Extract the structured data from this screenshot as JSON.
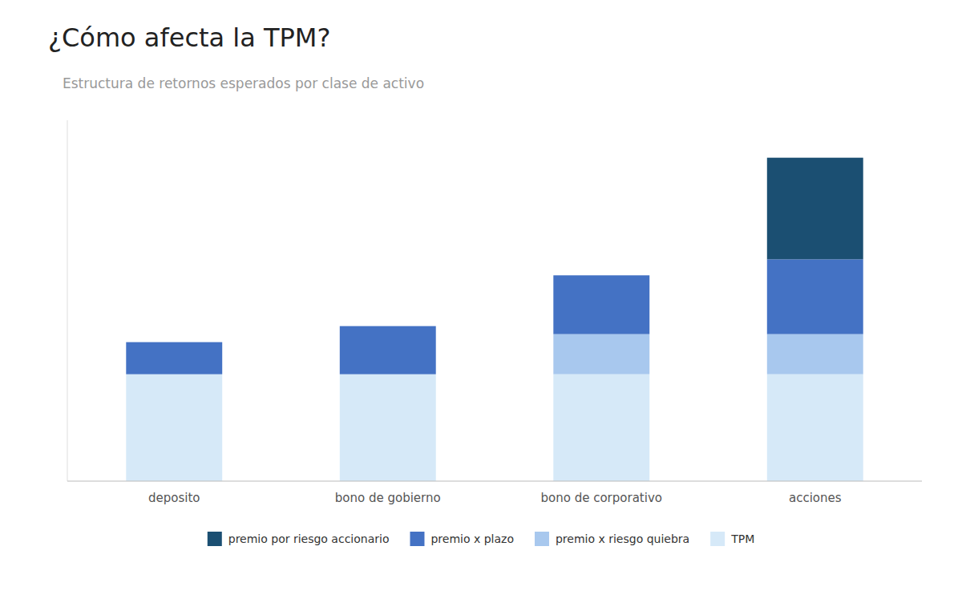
{
  "chart_data": {
    "type": "bar",
    "stacked": true,
    "title": "¿Cómo afecta la TPM?",
    "subtitle": "Estructura de retornos esperados por clase de activo",
    "categories": [
      "deposito",
      "bono de gobierno",
      "bono de corporativo",
      "acciones"
    ],
    "series": [
      {
        "name": "TPM",
        "color": "#d6e9f8",
        "values": [
          4.0,
          4.0,
          4.0,
          4.0
        ]
      },
      {
        "name": "premio x riesgo quiebra",
        "color": "#a8c8ee",
        "values": [
          0.0,
          0.0,
          1.5,
          1.5
        ]
      },
      {
        "name": "premio x plazo",
        "color": "#4472c4",
        "values": [
          1.2,
          1.8,
          2.2,
          2.8
        ]
      },
      {
        "name": "premio por riesgo accionario",
        "color": "#1b4f72",
        "values": [
          0.0,
          0.0,
          0.0,
          3.8
        ]
      }
    ],
    "ylim": [
      0,
      13.5
    ],
    "grid": false,
    "tick_labels": "x",
    "legend": "bottom"
  }
}
